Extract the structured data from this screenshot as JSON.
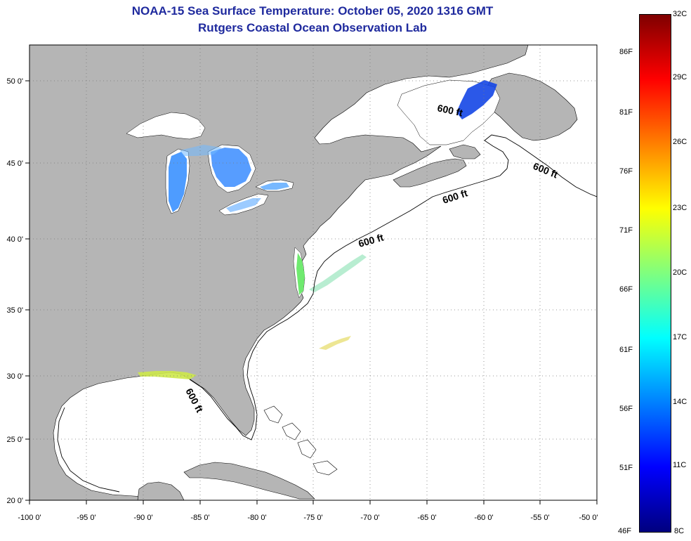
{
  "title": {
    "line1": "NOAA-15 Sea Surface Temperature:  October 05, 2020 1316 GMT",
    "line2": "Rutgers Coastal Ocean Observation Lab"
  },
  "axes": {
    "lon_ticks": [
      "-100 0'",
      "-95 0'",
      "-90 0'",
      "-85 0'",
      "-80 0'",
      "-75 0'",
      "-70 0'",
      "-65 0'",
      "-60 0'",
      "-55 0'",
      "-50 0'"
    ],
    "lat_ticks": [
      "50 0'",
      "45 0'",
      "40 0'",
      "35 0'",
      "30 0'",
      "25 0'",
      "20 0'"
    ]
  },
  "contour_labels": [
    "600 ft",
    "600 ft",
    "600 ft",
    "600 ft",
    "600 ft"
  ],
  "colorbar": {
    "celsius": [
      "32C",
      "29C",
      "26C",
      "23C",
      "20C",
      "17C",
      "14C",
      "11C",
      "8C"
    ],
    "fahrenheit": [
      "86F",
      "81F",
      "76F",
      "71F",
      "66F",
      "61F",
      "56F",
      "51F",
      "46F"
    ],
    "colors": {
      "top": "#7f0000",
      "red": "#ff0000",
      "orange": "#ff8000",
      "yellow": "#ffff00",
      "green": "#7fff7f",
      "cyan": "#00ffff",
      "blue": "#0080ff",
      "bluedeep": "#0000ff",
      "bottom": "#00007f"
    }
  },
  "colors": {
    "land": "#b5b5b5",
    "ocean": "#ffffff",
    "grid": "#7a7a7a",
    "title": "#1f2a9e"
  }
}
